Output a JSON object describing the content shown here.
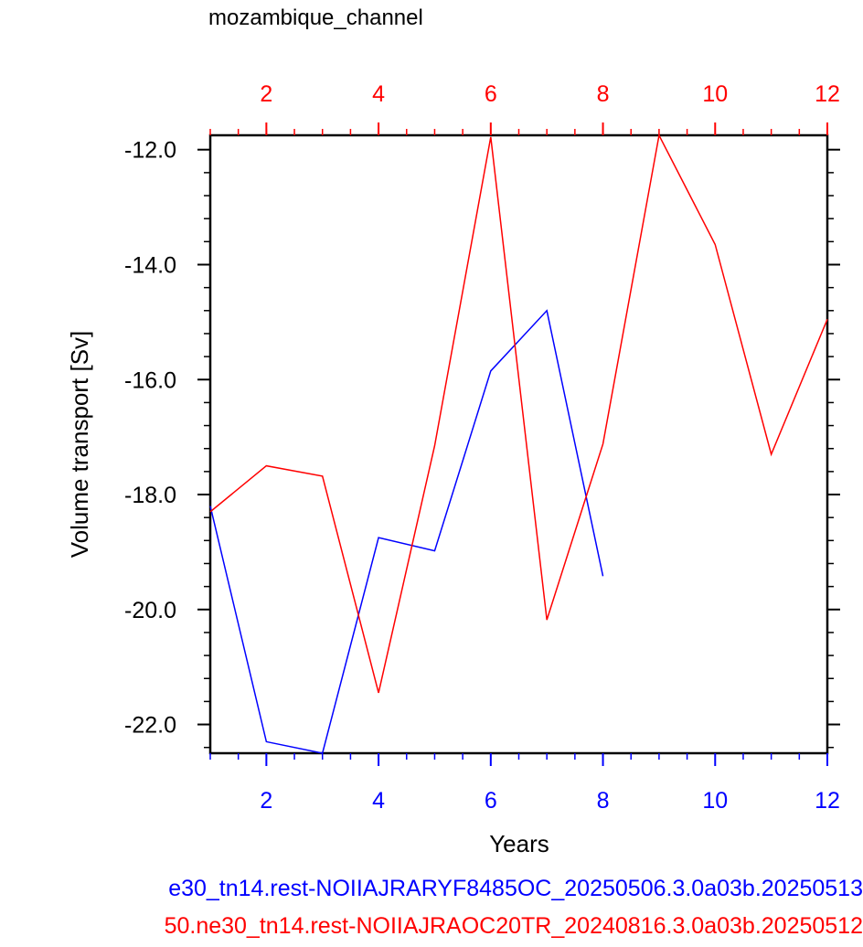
{
  "chart_data": {
    "type": "line",
    "title": "mozambique_channel",
    "xlabel": "Years",
    "ylabel": "Volume transport [Sv]",
    "xlim": [
      1,
      12
    ],
    "ylim": [
      -22.5,
      -11.75
    ],
    "grid": false,
    "y_ticks": [
      "-12.0",
      "-14.0",
      "-16.0",
      "-18.0",
      "-20.0",
      "-22.0"
    ],
    "y_tick_values": [
      -12,
      -14,
      -16,
      -18,
      -20,
      -22
    ],
    "x_ticks_bottom": [
      "2",
      "4",
      "6",
      "8",
      "10",
      "12"
    ],
    "x_ticks_top": [
      "2",
      "4",
      "6",
      "8",
      "10",
      "12"
    ],
    "x_tick_values": [
      2,
      4,
      6,
      8,
      10,
      12
    ],
    "series": [
      {
        "name": "e30_tn14.rest-NOIIAJRARYF8485OC_20250506.3.0a03b.20250513",
        "color": "#0000ff",
        "axis": "bottom",
        "x": [
          1,
          2,
          3,
          4,
          5,
          6,
          7,
          8
        ],
        "values": [
          -18.2,
          -22.3,
          -22.5,
          -18.75,
          -18.98,
          -15.85,
          -14.8,
          -19.42
        ]
      },
      {
        "name": "50.ne30_tn14.rest-NOIIAJRAOC20TR_20240816.3.0a03b.20250512",
        "color": "#ff0000",
        "axis": "top",
        "x": [
          1,
          2,
          3,
          4,
          5,
          6,
          7,
          8,
          9,
          10,
          11,
          12
        ],
        "values": [
          -18.3,
          -17.5,
          -17.68,
          -21.45,
          -17.15,
          -11.78,
          -20.18,
          -17.12,
          -11.75,
          -13.65,
          -17.3,
          -14.95
        ]
      }
    ]
  }
}
